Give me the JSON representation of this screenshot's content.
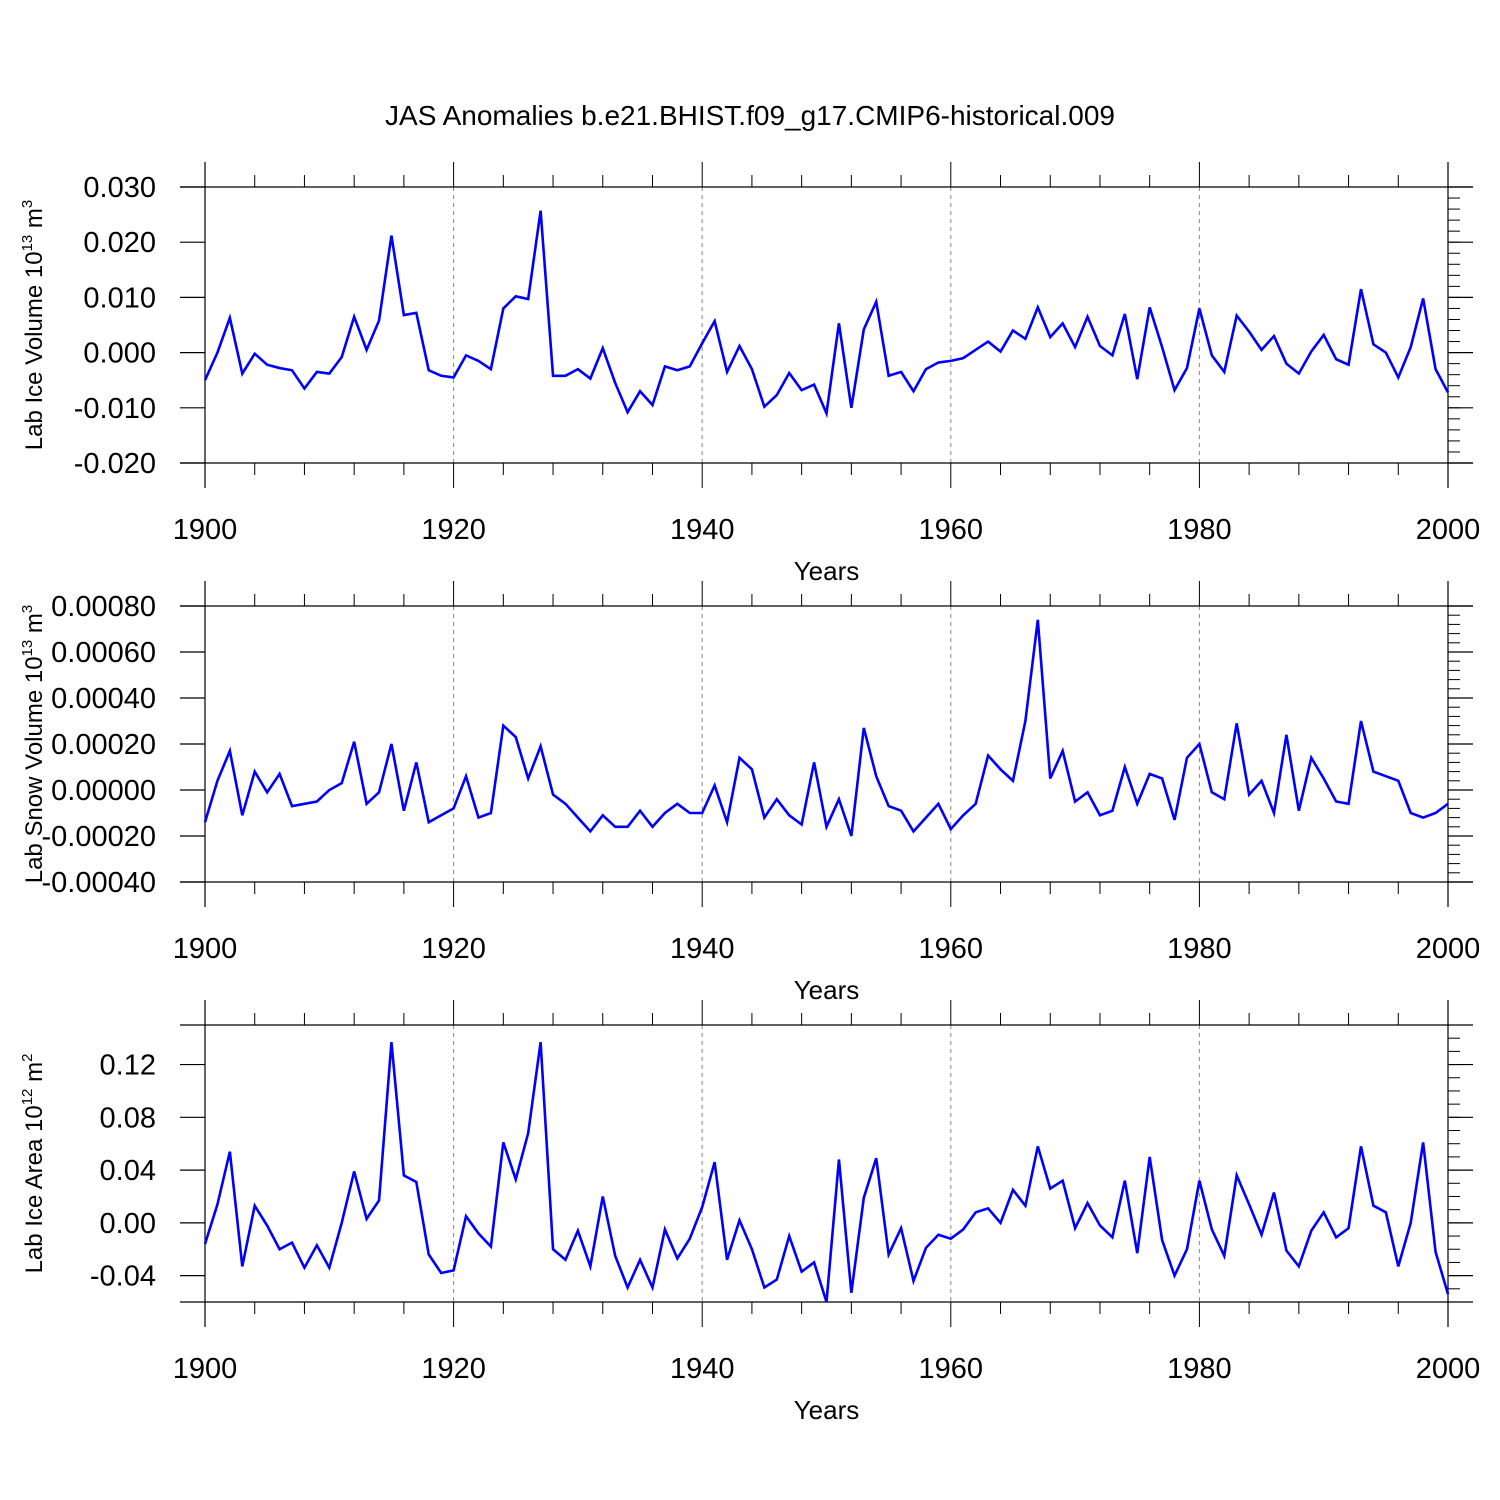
{
  "title": "JAS Anomalies b.e21.BHIST.f09_g17.CMIP6-historical.009",
  "colors": {
    "series": "#0000ff",
    "axis": "#000000",
    "grid": "#888888"
  },
  "chart_data": [
    {
      "type": "line",
      "ylabel": "Lab Ice Volume 10",
      "ylabel_exp": "13",
      "ylabel_unit": " m",
      "ylabel_unit_exp": "3",
      "xlabel": "Years",
      "xlim": [
        1900,
        2000
      ],
      "ylim": [
        -0.02,
        0.03
      ],
      "xticks": [
        1900,
        1920,
        1940,
        1960,
        1980,
        2000
      ],
      "yticks": [
        0.03,
        0.02,
        0.01,
        0.0,
        -0.01,
        -0.02
      ],
      "ytick_labels": [
        "0.030",
        "0.020",
        "0.010",
        "0.000",
        "-0.010",
        "-0.020"
      ],
      "yminor_step": 0.002,
      "grid_x": [
        1920,
        1940,
        1960,
        1980
      ],
      "series": [
        {
          "name": "Lab Ice Volume",
          "x_start": 1900,
          "values": [
            -0.005,
            0.0,
            0.0063,
            -0.0038,
            -0.0002,
            -0.0022,
            -0.0028,
            -0.0032,
            -0.0065,
            -0.0035,
            -0.0038,
            -0.0008,
            0.0065,
            0.0005,
            0.0058,
            0.0212,
            0.0068,
            0.0072,
            -0.0032,
            -0.0042,
            -0.0045,
            -0.0005,
            -0.0015,
            -0.003,
            0.008,
            0.0102,
            0.0097,
            0.0257,
            -0.0042,
            -0.0042,
            -0.003,
            -0.0047,
            0.0008,
            -0.0055,
            -0.0108,
            -0.007,
            -0.0095,
            -0.0025,
            -0.0032,
            -0.0025,
            0.0017,
            0.0057,
            -0.0035,
            0.0012,
            -0.003,
            -0.0098,
            -0.0077,
            -0.0037,
            -0.0068,
            -0.0058,
            -0.011,
            0.0053,
            -0.01,
            0.0042,
            0.0092,
            -0.0042,
            -0.0035,
            -0.007,
            -0.003,
            -0.0018,
            -0.0015,
            -0.001,
            0.0005,
            0.002,
            0.0002,
            0.004,
            0.0025,
            0.0082,
            0.0028,
            0.0053,
            0.001,
            0.0065,
            0.0012,
            -0.0005,
            0.007,
            -0.0048,
            0.0082,
            0.001,
            -0.0068,
            -0.0028,
            0.008,
            -0.0005,
            -0.0035,
            0.0067,
            0.0038,
            0.0005,
            0.003,
            -0.002,
            -0.0038,
            0.0002,
            0.0032,
            -0.0012,
            -0.0022,
            0.0115,
            0.0015,
            0.0,
            -0.0045,
            0.001,
            0.0098,
            -0.003,
            -0.0072
          ]
        }
      ]
    },
    {
      "type": "line",
      "ylabel": "Lab Snow Volume 10",
      "ylabel_exp": "13",
      "ylabel_unit": " m",
      "ylabel_unit_exp": "3",
      "xlabel": "Years",
      "xlim": [
        1900,
        2000
      ],
      "ylim": [
        -0.0004,
        0.0008
      ],
      "xticks": [
        1900,
        1920,
        1940,
        1960,
        1980,
        2000
      ],
      "yticks": [
        0.0008,
        0.0006,
        0.0004,
        0.0002,
        0.0,
        -0.0002,
        -0.0004
      ],
      "ytick_labels": [
        "0.00080",
        "0.00060",
        "0.00040",
        "0.00020",
        "0.00000",
        "-0.00020",
        "-0.00040"
      ],
      "yminor_step": 4e-05,
      "grid_x": [
        1920,
        1940,
        1960,
        1980
      ],
      "series": [
        {
          "name": "Lab Snow Volume",
          "x_start": 1900,
          "values": [
            -0.00014,
            4e-05,
            0.00017,
            -0.00011,
            8e-05,
            -1e-05,
            7e-05,
            -7e-05,
            -6e-05,
            -5e-05,
            0.0,
            3e-05,
            0.00021,
            -6e-05,
            -1e-05,
            0.0002,
            -9e-05,
            0.00012,
            -0.00014,
            -0.00011,
            -8e-05,
            6e-05,
            -0.00012,
            -0.0001,
            0.00028,
            0.00023,
            5e-05,
            0.00019,
            -2e-05,
            -6e-05,
            -0.00012,
            -0.00018,
            -0.00011,
            -0.00016,
            -0.00016,
            -9e-05,
            -0.00016,
            -0.0001,
            -6e-05,
            -0.0001,
            -0.0001,
            2e-05,
            -0.00014,
            0.00014,
            9e-05,
            -0.00012,
            -4e-05,
            -0.00011,
            -0.00015,
            0.00012,
            -0.00016,
            -4e-05,
            -0.0002,
            0.00027,
            6e-05,
            -7e-05,
            -9e-05,
            -0.00018,
            -0.00012,
            -6e-05,
            -0.00017,
            -0.00011,
            -6e-05,
            0.00015,
            9e-05,
            4e-05,
            0.0003,
            0.00074,
            5e-05,
            0.00017,
            -5e-05,
            -1e-05,
            -0.00011,
            -9e-05,
            0.0001,
            -6e-05,
            7e-05,
            5e-05,
            -0.00013,
            0.00014,
            0.0002,
            -1e-05,
            -4e-05,
            0.00029,
            -2e-05,
            4e-05,
            -0.0001,
            0.00024,
            -9e-05,
            0.00014,
            5e-05,
            -5e-05,
            -6e-05,
            0.0003,
            8e-05,
            6e-05,
            4e-05,
            -0.0001,
            -0.00012,
            -0.0001,
            -6e-05
          ]
        }
      ]
    },
    {
      "type": "line",
      "ylabel": "Lab Ice Area 10",
      "ylabel_exp": "12",
      "ylabel_unit": " m",
      "ylabel_unit_exp": "2",
      "xlabel": "Years",
      "xlim": [
        1900,
        2000
      ],
      "ylim": [
        -0.06,
        0.15
      ],
      "xticks": [
        1900,
        1920,
        1940,
        1960,
        1980,
        2000
      ],
      "yticks": [
        0.12,
        0.08,
        0.04,
        0.0,
        -0.04
      ],
      "ytick_labels": [
        "0.12",
        "0.08",
        "0.04",
        "0.00",
        "-0.04"
      ],
      "yminor_step": 0.01,
      "grid_x": [
        1920,
        1940,
        1960,
        1980
      ],
      "series": [
        {
          "name": "Lab Ice Area",
          "x_start": 1900,
          "values": [
            -0.016,
            0.014,
            0.054,
            -0.033,
            0.013,
            -0.002,
            -0.02,
            -0.015,
            -0.034,
            -0.017,
            -0.034,
            0.0,
            0.039,
            0.003,
            0.017,
            0.137,
            0.036,
            0.031,
            -0.024,
            -0.038,
            -0.036,
            0.005,
            -0.008,
            -0.018,
            0.061,
            0.033,
            0.068,
            0.137,
            -0.02,
            -0.028,
            -0.006,
            -0.033,
            0.02,
            -0.025,
            -0.049,
            -0.028,
            -0.049,
            -0.005,
            -0.027,
            -0.012,
            0.012,
            0.046,
            -0.028,
            0.002,
            -0.02,
            -0.049,
            -0.043,
            -0.01,
            -0.037,
            -0.03,
            -0.06,
            0.048,
            -0.053,
            0.019,
            0.049,
            -0.024,
            -0.004,
            -0.044,
            -0.019,
            -0.009,
            -0.012,
            -0.005,
            0.008,
            0.011,
            0.0,
            0.025,
            0.013,
            0.058,
            0.026,
            0.032,
            -0.004,
            0.015,
            -0.002,
            -0.011,
            0.032,
            -0.023,
            0.05,
            -0.013,
            -0.04,
            -0.02,
            0.032,
            -0.005,
            -0.025,
            0.036,
            0.014,
            -0.009,
            0.023,
            -0.021,
            -0.033,
            -0.006,
            0.008,
            -0.011,
            -0.004,
            0.058,
            0.013,
            0.008,
            -0.033,
            0.0,
            0.061,
            -0.022,
            -0.054
          ]
        }
      ]
    }
  ]
}
